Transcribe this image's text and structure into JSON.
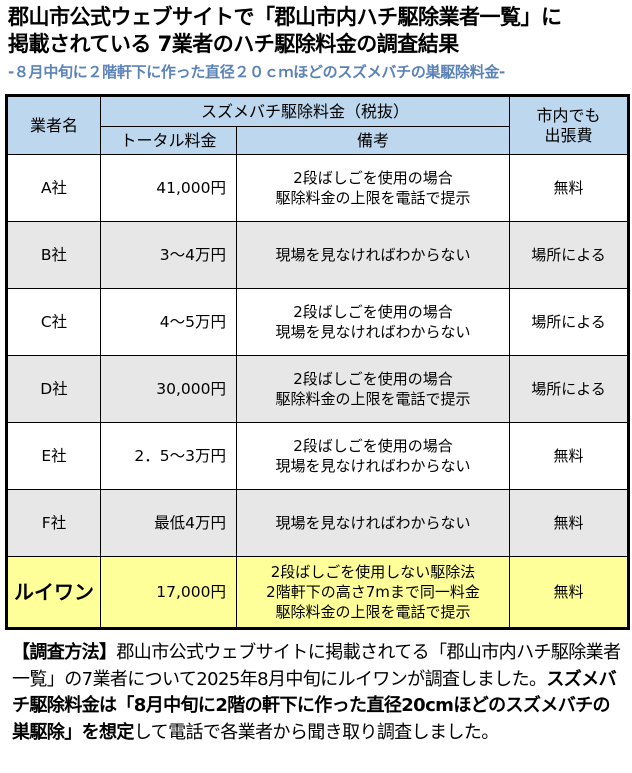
{
  "title": {
    "line1": "郡山市公式ウェブサイトで「郡山市内ハチ駆除業者一覧」に",
    "line2": "掲載されている 7業者のハチ駆除料金の調査結果",
    "subtitle": "-８月中旬に２階軒下に作った直径２０ｃｍほどのスズメバチの巣駆除料金-"
  },
  "table": {
    "headers": {
      "company": "業者名",
      "fee_group": "スズメバチ駆除料金（税抜）",
      "total": "トータル料金",
      "remarks": "備考",
      "travel": "市内でも\n出張費",
      "travel_l1": "市内でも",
      "travel_l2": "出張費"
    },
    "rows": [
      {
        "company": "A社",
        "total": "41,000円",
        "remarks": [
          "2段ばしごを使用の場合",
          "駆除料金の上限を電話で提示"
        ],
        "travel": "無料"
      },
      {
        "company": "B社",
        "total": "3～4万円",
        "remarks": [
          "現場を見なければわからない"
        ],
        "travel": "場所による"
      },
      {
        "company": "C社",
        "total": "4～5万円",
        "remarks": [
          "2段ばしごを使用の場合",
          "現場を見なければわからない"
        ],
        "travel": "場所による"
      },
      {
        "company": "D社",
        "total": "30,000円",
        "remarks": [
          "2段ばしごを使用の場合",
          "駆除料金の上限を電話で提示"
        ],
        "travel": "場所による"
      },
      {
        "company": "E社",
        "total": "2．5～3万円",
        "remarks": [
          "2段ばしごを使用の場合",
          "現場を見なければわからない"
        ],
        "travel": "無料"
      },
      {
        "company": "F社",
        "total": "最低4万円",
        "remarks": [
          "現場を見なければわからない"
        ],
        "travel": "無料"
      },
      {
        "company": "ルイワン",
        "total": "17,000円",
        "remarks": [
          "2段ばしごを使用しない駆除法",
          "2階軒下の高さ7mまで同一料金",
          "駆除料金の上限を電話で提示"
        ],
        "travel": "無料"
      }
    ],
    "colors": {
      "header": "#bdd7ee",
      "gray_row": "#e7e7e7",
      "highlight_row": "#ffff99",
      "subtitle": "#5b83b8"
    }
  },
  "note": {
    "label": "【調査方法】",
    "text1": "郡山市公式ウェブサイトに掲載されてる「郡山市内ハチ駆除業者一覧」の7業者について2025年8月中旬にルイワンが調査しました。",
    "bold": "スズメバチ駆除料金は「8月中旬に2階の軒下に作った直径20cmほどのスズメバチの巣駆除」を想定",
    "text2": "して電話で各業者から聞き取り調査しました。"
  }
}
